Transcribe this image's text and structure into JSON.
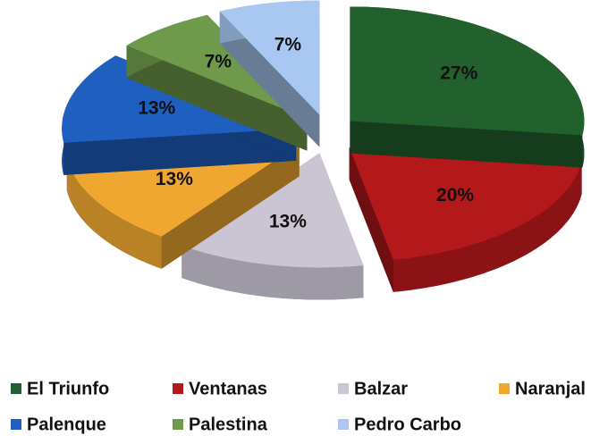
{
  "chart_data": {
    "type": "pie",
    "categories": [
      "El Triunfo",
      "Ventanas",
      "Balzar",
      "Naranjal",
      "Palenque",
      "Palestina",
      "Pedro Carbo"
    ],
    "values": [
      27,
      20,
      13,
      13,
      13,
      7,
      7
    ],
    "value_labels": [
      "27%",
      "20%",
      "13%",
      "13%",
      "13%",
      "7%",
      "7%"
    ],
    "colors": [
      "#22612e",
      "#b3181b",
      "#cbc5d3",
      "#efa731",
      "#1f5fc0",
      "#6f9a4c",
      "#a8c8f2"
    ],
    "legend": "bottom"
  }
}
